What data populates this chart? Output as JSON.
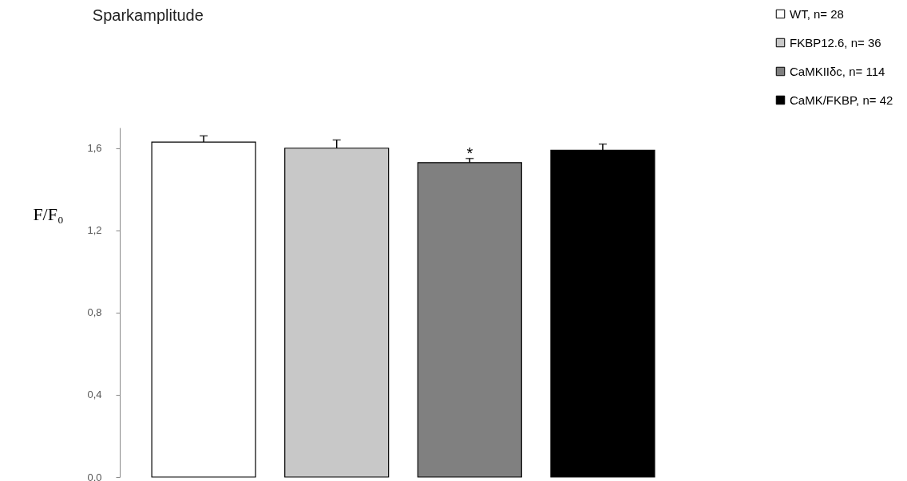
{
  "chart_data": {
    "type": "bar",
    "title": "Sparkamplitude",
    "ylabel": "F/F₀",
    "categories": [
      null
    ],
    "series": [
      {
        "name": "WT, n= 28",
        "color": "#ffffff",
        "values": [
          1.63
        ],
        "errors": [
          [
            1.63,
            1.66
          ]
        ]
      },
      {
        "name": "FKBP12.6, n= 36",
        "color": "#c8c8c8",
        "values": [
          1.6
        ],
        "errors": [
          [
            1.6,
            1.64
          ]
        ]
      },
      {
        "name": "CaMKIIδc, n= 114",
        "color": "#808080",
        "values": [
          1.53
        ],
        "errors": [
          [
            1.53,
            1.55
          ]
        ]
      },
      {
        "name": "CaMK/FKBP, n= 42",
        "color": "#000000",
        "values": [
          1.59
        ],
        "errors": [
          [
            1.59,
            1.62
          ]
        ]
      }
    ],
    "annotations": [
      "*"
    ],
    "ylim": [
      0,
      1.7
    ],
    "yticks": [
      {
        "value": 0,
        "label": "0.0"
      },
      {
        "value": 0.4,
        "label": "0,4"
      },
      {
        "value": 0.8,
        "label": "0,8"
      },
      {
        "value": 1.2,
        "label": "1,2"
      },
      {
        "value": 1.6,
        "label": "1,6"
      }
    ],
    "legend": "top right",
    "grid": false
  }
}
